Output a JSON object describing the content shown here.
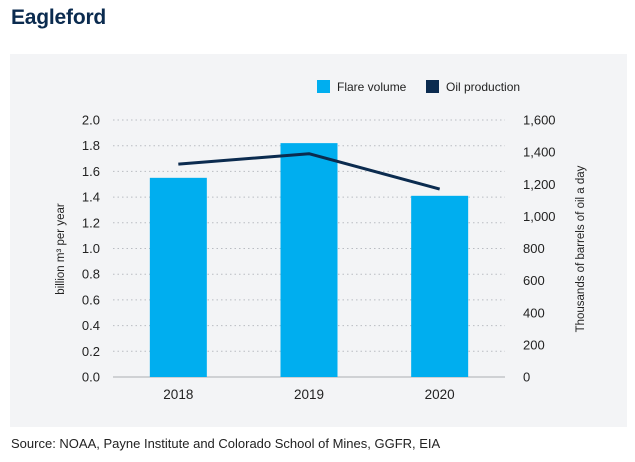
{
  "page": {
    "title": "Eagleford",
    "source": "Source: NOAA, Payne Institute and Colorado School of Mines, GGFR, EIA"
  },
  "colors": {
    "flare": "#00aeef",
    "oil": "#0b2b4f",
    "grid": "#b9bcc2",
    "axis_line": "#c3c5c9",
    "panel_bg": "#f3f4f6",
    "text": "#222222"
  },
  "chart_data": {
    "type": "bar",
    "title": "Eagleford",
    "categories": [
      "2018",
      "2019",
      "2020"
    ],
    "series": [
      {
        "name": "Flare volume",
        "kind": "bar",
        "axis": "left",
        "values": [
          1.55,
          1.82,
          1.41
        ]
      },
      {
        "name": "Oil production",
        "kind": "line",
        "axis": "right",
        "values": [
          1325,
          1390,
          1170
        ]
      }
    ],
    "ylabel": "billion m³ per year",
    "y2label": "Thousands of barrels of oil a day",
    "xlabel": "",
    "ylim": [
      0,
      2.0
    ],
    "y2lim": [
      0,
      1600
    ],
    "yticks": [
      "0.0",
      "0.2",
      "0.4",
      "0.6",
      "0.8",
      "1.0",
      "1.2",
      "1.4",
      "1.6",
      "1.8",
      "2.0"
    ],
    "y2ticks": [
      "0",
      "200",
      "400",
      "600",
      "800",
      "1,000",
      "1,200",
      "1,400",
      "1,600"
    ],
    "grid": true,
    "legend": {
      "position": "top-right",
      "entries": [
        "Flare volume",
        "Oil production"
      ]
    }
  }
}
